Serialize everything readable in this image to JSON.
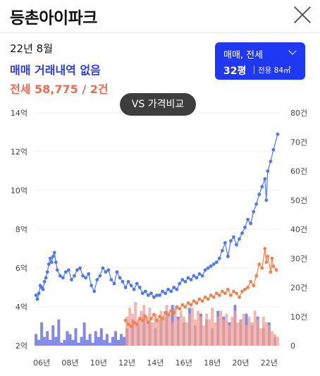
{
  "header": {
    "title": "등촌아이파크",
    "close_icon": "close-icon"
  },
  "summary": {
    "date": "22년 8월",
    "trade_text": "매매 거래내역 없음",
    "rent_text": "전세 58,775 / 2건",
    "trade_color": "#2b3cf0",
    "rent_color": "#f26a4f"
  },
  "selector": {
    "type_label": "매매, 전세",
    "size_label": "32평",
    "area_label": "전용 84㎡",
    "chevron_icon": "chevron-down-icon",
    "color": "#1f39f2"
  },
  "compare_button": {
    "label": "VS 가격비교"
  },
  "chart_data": {
    "type": "line",
    "x_ticks": [
      "06년",
      "08년",
      "10년",
      "12년",
      "14년",
      "16년",
      "18년",
      "20년",
      "22년"
    ],
    "left_ticks": [
      "2억",
      "4억",
      "6억",
      "8억",
      "10억",
      "12억",
      "14억"
    ],
    "right_ticks": [
      "0",
      "10건",
      "20건",
      "30건",
      "40건",
      "50건",
      "60건",
      "70건",
      "80건"
    ],
    "ylim_left": [
      2,
      14
    ],
    "ylim_right": [
      0,
      80
    ],
    "xlim": [
      2005.5,
      2022.8
    ],
    "grid": true,
    "series": [
      {
        "color": "#4f78f0",
        "points": [
          [
            2005.6,
            4.6
          ],
          [
            2005.7,
            4.4
          ],
          [
            2005.8,
            4.7
          ],
          [
            2005.9,
            5.1
          ],
          [
            2006.0,
            5.0
          ],
          [
            2006.1,
            4.9
          ],
          [
            2006.2,
            5.3
          ],
          [
            2006.3,
            5.5
          ],
          [
            2006.4,
            5.8
          ],
          [
            2006.5,
            6.2
          ],
          [
            2006.6,
            6.5
          ],
          [
            2006.7,
            6.3
          ],
          [
            2006.8,
            6.6
          ],
          [
            2006.9,
            6.8
          ],
          [
            2007.0,
            6.3
          ],
          [
            2007.1,
            5.9
          ],
          [
            2007.3,
            5.6
          ],
          [
            2007.5,
            5.5
          ],
          [
            2007.7,
            5.8
          ],
          [
            2007.9,
            5.9
          ],
          [
            2008.1,
            5.4
          ],
          [
            2008.3,
            5.6
          ],
          [
            2008.5,
            5.9
          ],
          [
            2008.7,
            6.0
          ],
          [
            2008.9,
            5.6
          ],
          [
            2009.1,
            5.5
          ],
          [
            2009.3,
            5.7
          ],
          [
            2009.5,
            5.1
          ],
          [
            2009.7,
            4.8
          ],
          [
            2009.9,
            5.4
          ],
          [
            2010.1,
            5.6
          ],
          [
            2010.3,
            6.0
          ],
          [
            2010.5,
            5.8
          ],
          [
            2010.7,
            5.9
          ],
          [
            2010.9,
            5.4
          ],
          [
            2011.1,
            5.2
          ],
          [
            2011.3,
            5.8
          ],
          [
            2011.5,
            5.5
          ],
          [
            2011.7,
            5.3
          ],
          [
            2011.9,
            5.0
          ],
          [
            2012.1,
            5.3
          ],
          [
            2012.3,
            5.1
          ],
          [
            2012.5,
            4.9
          ],
          [
            2012.7,
            5.2
          ],
          [
            2012.9,
            5.0
          ],
          [
            2013.1,
            4.7
          ],
          [
            2013.3,
            4.8
          ],
          [
            2013.5,
            4.6
          ],
          [
            2013.7,
            4.7
          ],
          [
            2013.9,
            4.5
          ],
          [
            2014.1,
            4.6
          ],
          [
            2014.3,
            4.6
          ],
          [
            2014.5,
            4.8
          ],
          [
            2014.7,
            4.7
          ],
          [
            2014.9,
            4.9
          ],
          [
            2015.1,
            4.8
          ],
          [
            2015.3,
            5.0
          ],
          [
            2015.5,
            4.9
          ],
          [
            2015.7,
            5.2
          ],
          [
            2015.9,
            5.4
          ],
          [
            2016.1,
            5.3
          ],
          [
            2016.3,
            5.5
          ],
          [
            2016.5,
            5.4
          ],
          [
            2016.7,
            5.6
          ],
          [
            2016.9,
            5.5
          ],
          [
            2017.1,
            5.7
          ],
          [
            2017.3,
            5.6
          ],
          [
            2017.5,
            5.9
          ],
          [
            2017.7,
            6.0
          ],
          [
            2017.9,
            6.1
          ],
          [
            2018.1,
            6.2
          ],
          [
            2018.3,
            6.3
          ],
          [
            2018.5,
            6.5
          ],
          [
            2018.7,
            6.9
          ],
          [
            2018.9,
            7.3
          ],
          [
            2019.1,
            6.6
          ],
          [
            2019.3,
            7.4
          ],
          [
            2019.5,
            7.6
          ],
          [
            2019.7,
            7.2
          ],
          [
            2019.9,
            7.5
          ],
          [
            2020.1,
            7.8
          ],
          [
            2020.3,
            8.1
          ],
          [
            2020.5,
            8.5
          ],
          [
            2020.7,
            8.3
          ],
          [
            2020.9,
            8.9
          ],
          [
            2021.1,
            9.3
          ],
          [
            2021.3,
            9.8
          ],
          [
            2021.5,
            10.2
          ],
          [
            2021.7,
            10.6
          ],
          [
            2021.8,
            9.5
          ],
          [
            2021.9,
            11.0
          ],
          [
            2022.1,
            11.5
          ],
          [
            2022.3,
            12.1
          ],
          [
            2022.6,
            12.9
          ]
        ]
      },
      {
        "color": "#f4804e",
        "points": [
          [
            2011.9,
            3.3
          ],
          [
            2012.1,
            3.1
          ],
          [
            2012.3,
            3.0
          ],
          [
            2012.5,
            3.2
          ],
          [
            2012.7,
            3.1
          ],
          [
            2012.9,
            3.4
          ],
          [
            2013.1,
            3.3
          ],
          [
            2013.3,
            3.5
          ],
          [
            2013.5,
            3.2
          ],
          [
            2013.7,
            3.4
          ],
          [
            2013.9,
            3.6
          ],
          [
            2014.1,
            3.3
          ],
          [
            2014.3,
            3.5
          ],
          [
            2014.5,
            3.4
          ],
          [
            2014.7,
            3.7
          ],
          [
            2014.9,
            3.6
          ],
          [
            2015.1,
            3.8
          ],
          [
            2015.3,
            3.7
          ],
          [
            2015.5,
            4.0
          ],
          [
            2015.7,
            3.9
          ],
          [
            2015.9,
            4.1
          ],
          [
            2016.1,
            4.0
          ],
          [
            2016.3,
            4.2
          ],
          [
            2016.5,
            4.1
          ],
          [
            2016.7,
            4.3
          ],
          [
            2016.9,
            4.2
          ],
          [
            2017.1,
            4.4
          ],
          [
            2017.3,
            4.3
          ],
          [
            2017.5,
            4.5
          ],
          [
            2017.7,
            4.4
          ],
          [
            2017.9,
            4.6
          ],
          [
            2018.1,
            4.5
          ],
          [
            2018.3,
            4.7
          ],
          [
            2018.5,
            4.6
          ],
          [
            2018.7,
            4.8
          ],
          [
            2018.9,
            4.7
          ],
          [
            2019.1,
            4.9
          ],
          [
            2019.3,
            4.6
          ],
          [
            2019.5,
            4.8
          ],
          [
            2019.7,
            4.7
          ],
          [
            2019.9,
            4.5
          ],
          [
            2020.1,
            4.8
          ],
          [
            2020.3,
            4.9
          ],
          [
            2020.5,
            5.0
          ],
          [
            2020.7,
            5.3
          ],
          [
            2020.9,
            5.1
          ],
          [
            2021.1,
            5.6
          ],
          [
            2021.3,
            6.2
          ],
          [
            2021.5,
            6.0
          ],
          [
            2021.7,
            7.0
          ],
          [
            2021.8,
            6.3
          ],
          [
            2021.9,
            6.6
          ],
          [
            2022.1,
            5.8
          ],
          [
            2022.2,
            6.5
          ],
          [
            2022.3,
            6.1
          ],
          [
            2022.5,
            5.9
          ]
        ]
      },
      {
        "type": "bar",
        "color": "#5a63dd",
        "x": [
          2005.6,
          2005.8,
          2006.0,
          2006.2,
          2006.4,
          2006.6,
          2006.8,
          2007.0,
          2007.2,
          2007.4,
          2007.6,
          2007.8,
          2008.0,
          2008.2,
          2008.4,
          2008.6,
          2008.8,
          2009.0,
          2009.2,
          2009.4,
          2009.6,
          2009.8,
          2010.0,
          2010.2,
          2010.4,
          2010.6,
          2010.8,
          2011.0,
          2011.2,
          2011.4,
          2011.6,
          2011.8,
          2012.0,
          2012.4,
          2012.8,
          2013.2,
          2013.6,
          2014.0,
          2014.4,
          2014.8,
          2015.2,
          2015.6,
          2016.0,
          2016.4,
          2016.8,
          2017.2,
          2017.6,
          2018.0,
          2018.4,
          2018.8,
          2019.2,
          2019.6,
          2020.0,
          2020.4,
          2020.8,
          2021.2,
          2021.6,
          2022.0,
          2022.4
        ],
        "values": [
          4,
          2,
          8,
          3,
          5,
          2,
          7,
          3,
          9,
          1,
          2,
          5,
          4,
          2,
          6,
          1,
          3,
          8,
          2,
          4,
          1,
          5,
          3,
          6,
          2,
          4,
          1,
          3,
          5,
          2,
          4,
          3,
          6,
          9,
          7,
          11,
          8,
          6,
          9,
          12,
          14,
          10,
          8,
          13,
          7,
          11,
          9,
          6,
          12,
          10,
          8,
          14,
          9,
          11,
          7,
          10,
          6,
          8,
          3
        ]
      },
      {
        "type": "bar",
        "color": "#f3a091",
        "x": [
          2012.0,
          2012.2,
          2012.4,
          2012.6,
          2012.8,
          2013.0,
          2013.2,
          2013.4,
          2013.6,
          2013.8,
          2014.0,
          2014.2,
          2014.4,
          2014.6,
          2014.8,
          2015.0,
          2015.2,
          2015.4,
          2015.6,
          2015.8,
          2016.0,
          2016.2,
          2016.4,
          2016.6,
          2016.8,
          2017.0,
          2017.2,
          2017.4,
          2017.6,
          2017.8,
          2018.0,
          2018.2,
          2018.4,
          2018.6,
          2018.8,
          2019.0,
          2019.2,
          2019.4,
          2019.6,
          2019.8,
          2020.0,
          2020.2,
          2020.4,
          2020.6,
          2020.8,
          2021.0,
          2021.2,
          2021.4,
          2021.6,
          2021.8,
          2022.0,
          2022.2,
          2022.4,
          2022.6
        ],
        "values": [
          10,
          13,
          11,
          15,
          9,
          12,
          14,
          10,
          13,
          8,
          11,
          9,
          12,
          10,
          14,
          11,
          8,
          13,
          9,
          12,
          10,
          8,
          11,
          13,
          9,
          12,
          10,
          7,
          11,
          9,
          13,
          8,
          10,
          12,
          9,
          11,
          7,
          10,
          12,
          8,
          9,
          11,
          7,
          10,
          8,
          12,
          9,
          6,
          10,
          8,
          7,
          5,
          4,
          3
        ]
      }
    ]
  }
}
